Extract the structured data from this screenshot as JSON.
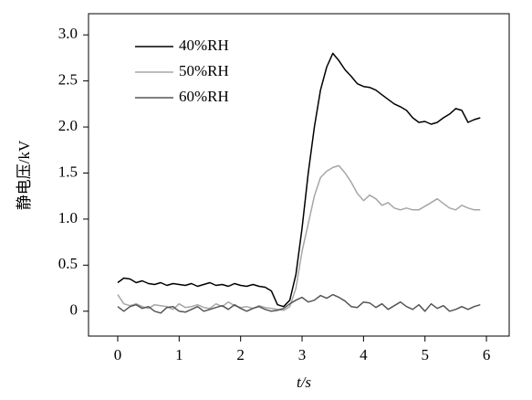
{
  "chart_data": {
    "type": "line",
    "x_label": "t/s",
    "y_label": "静电压/kV",
    "x": [
      0,
      0.1,
      0.2,
      0.3,
      0.4,
      0.5,
      0.6,
      0.7,
      0.8,
      0.9,
      1,
      1.1,
      1.2,
      1.3,
      1.4,
      1.5,
      1.6,
      1.7,
      1.8,
      1.9,
      2,
      2.1,
      2.2,
      2.3,
      2.4,
      2.5,
      2.6,
      2.7,
      2.8,
      2.9,
      3,
      3.1,
      3.2,
      3.3,
      3.4,
      3.5,
      3.6,
      3.7,
      3.8,
      3.9,
      4,
      4.1,
      4.2,
      4.3,
      4.4,
      4.5,
      4.6,
      4.7,
      4.8,
      4.9,
      5,
      5.1,
      5.2,
      5.3,
      5.4,
      5.5,
      5.6,
      5.7,
      5.8,
      5.9
    ],
    "series": [
      {
        "name": "40%RH",
        "color": "#000000",
        "values": [
          0.31,
          0.36,
          0.35,
          0.31,
          0.33,
          0.3,
          0.29,
          0.31,
          0.28,
          0.3,
          0.29,
          0.28,
          0.3,
          0.27,
          0.29,
          0.31,
          0.28,
          0.29,
          0.27,
          0.3,
          0.28,
          0.27,
          0.29,
          0.27,
          0.26,
          0.22,
          0.07,
          0.05,
          0.12,
          0.4,
          0.9,
          1.5,
          2.0,
          2.4,
          2.65,
          2.8,
          2.72,
          2.62,
          2.55,
          2.47,
          2.44,
          2.43,
          2.4,
          2.35,
          2.3,
          2.25,
          2.22,
          2.18,
          2.1,
          2.05,
          2.06,
          2.03,
          2.05,
          2.1,
          2.14,
          2.2,
          2.18,
          2.05,
          2.08,
          2.1
        ]
      },
      {
        "name": "50%RH",
        "color": "#a6a6a6",
        "values": [
          0.18,
          0.08,
          0.06,
          0.08,
          0.05,
          0.03,
          0.07,
          0.06,
          0.05,
          0.02,
          0.08,
          0.04,
          0.05,
          0.07,
          0.04,
          0.03,
          0.08,
          0.05,
          0.1,
          0.06,
          0.04,
          0.05,
          0.03,
          0.06,
          0.04,
          0.03,
          0.02,
          0.01,
          0.05,
          0.25,
          0.65,
          0.95,
          1.25,
          1.45,
          1.52,
          1.56,
          1.58,
          1.5,
          1.4,
          1.28,
          1.2,
          1.26,
          1.22,
          1.15,
          1.18,
          1.12,
          1.1,
          1.12,
          1.1,
          1.1,
          1.14,
          1.18,
          1.22,
          1.17,
          1.12,
          1.1,
          1.15,
          1.12,
          1.1,
          1.1
        ]
      },
      {
        "name": "60%RH",
        "color": "#555555",
        "values": [
          0.05,
          0.0,
          0.05,
          0.07,
          0.03,
          0.05,
          0.0,
          -0.02,
          0.04,
          0.05,
          0.0,
          -0.01,
          0.02,
          0.05,
          0.0,
          0.02,
          0.04,
          0.06,
          0.02,
          0.07,
          0.03,
          0.0,
          0.03,
          0.05,
          0.02,
          0.0,
          0.01,
          0.03,
          0.08,
          0.12,
          0.15,
          0.1,
          0.12,
          0.17,
          0.14,
          0.18,
          0.15,
          0.11,
          0.05,
          0.04,
          0.1,
          0.09,
          0.04,
          0.08,
          0.02,
          0.06,
          0.1,
          0.05,
          0.02,
          0.07,
          0.0,
          0.08,
          0.03,
          0.06,
          0.0,
          0.02,
          0.05,
          0.02,
          0.05,
          0.07
        ]
      }
    ],
    "xlim": [
      -0.475,
      6.37
    ],
    "xticks": [
      0,
      1,
      2,
      3,
      4,
      5,
      6
    ],
    "ylim": [
      -0.27,
      3.23
    ],
    "yticks": [
      0,
      0.5,
      {
        "value": 1,
        "label": "1.0"
      },
      1.5,
      {
        "value": 2,
        "label": "2.0"
      },
      2.5,
      {
        "value": 3,
        "label": "3.0"
      }
    ],
    "legend": "top-left"
  }
}
